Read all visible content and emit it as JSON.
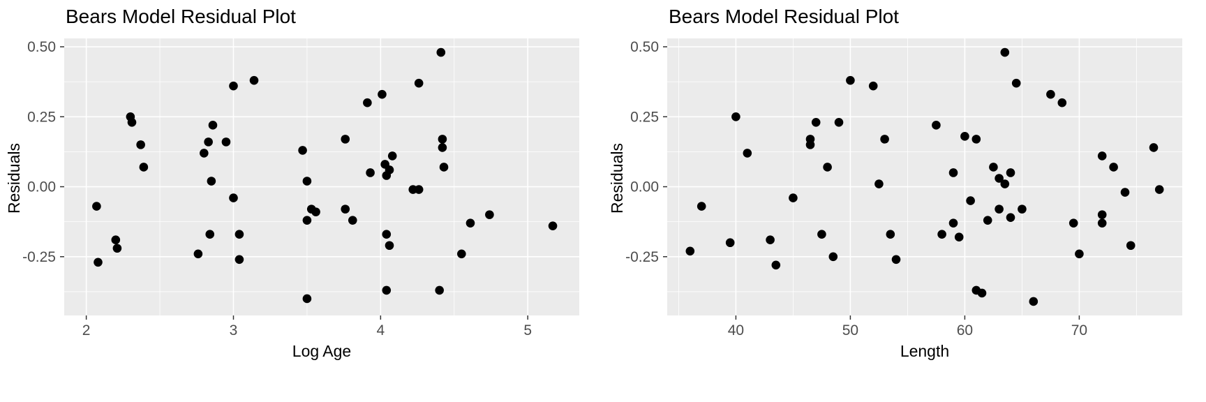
{
  "style": {
    "panel_bg": "#EBEBEB",
    "grid_color": "#FFFFFF",
    "point_color": "#000000",
    "tick_label_color": "#4D4D4D",
    "tick_mark_color": "#333333",
    "title_color": "#000000"
  },
  "chart_data": [
    {
      "type": "scatter",
      "title": "Bears Model Residual Plot",
      "xlabel": "Log Age",
      "ylabel": "Residuals",
      "xlim": [
        1.85,
        5.35
      ],
      "ylim": [
        -0.46,
        0.53
      ],
      "xtick_values": [
        2,
        3,
        4,
        5
      ],
      "xtick_labels": [
        "2",
        "3",
        "4",
        "5"
      ],
      "xminor_values": [
        2.5,
        3.5,
        4.5
      ],
      "ytick_values": [
        -0.25,
        0.0,
        0.25,
        0.5
      ],
      "ytick_labels": [
        "-0.25",
        "0.00",
        "0.25",
        "0.50"
      ],
      "yminor_values": [
        -0.375,
        -0.125,
        0.125,
        0.375
      ],
      "grid": true,
      "legend": false,
      "points": [
        [
          2.07,
          -0.07
        ],
        [
          2.08,
          -0.27
        ],
        [
          2.2,
          -0.19
        ],
        [
          2.21,
          -0.22
        ],
        [
          2.3,
          0.25
        ],
        [
          2.31,
          0.23
        ],
        [
          2.37,
          0.15
        ],
        [
          2.39,
          0.07
        ],
        [
          2.76,
          -0.24
        ],
        [
          2.8,
          0.12
        ],
        [
          2.83,
          0.16
        ],
        [
          2.86,
          0.22
        ],
        [
          2.85,
          0.02
        ],
        [
          2.84,
          -0.17
        ],
        [
          2.95,
          0.16
        ],
        [
          3.0,
          0.36
        ],
        [
          3.0,
          -0.04
        ],
        [
          3.04,
          -0.17
        ],
        [
          3.04,
          -0.26
        ],
        [
          3.14,
          0.38
        ],
        [
          3.47,
          0.13
        ],
        [
          3.5,
          0.02
        ],
        [
          3.5,
          -0.12
        ],
        [
          3.53,
          -0.08
        ],
        [
          3.56,
          -0.09
        ],
        [
          3.5,
          -0.4
        ],
        [
          3.76,
          0.17
        ],
        [
          3.76,
          -0.08
        ],
        [
          3.81,
          -0.12
        ],
        [
          3.91,
          0.3
        ],
        [
          3.93,
          0.05
        ],
        [
          4.01,
          0.33
        ],
        [
          4.03,
          0.08
        ],
        [
          4.04,
          0.04
        ],
        [
          4.06,
          0.06
        ],
        [
          4.08,
          0.11
        ],
        [
          4.04,
          -0.17
        ],
        [
          4.06,
          -0.21
        ],
        [
          4.04,
          -0.37
        ],
        [
          4.22,
          -0.01
        ],
        [
          4.26,
          -0.01
        ],
        [
          4.26,
          0.37
        ],
        [
          4.41,
          0.48
        ],
        [
          4.42,
          0.17
        ],
        [
          4.42,
          0.14
        ],
        [
          4.43,
          0.07
        ],
        [
          4.4,
          -0.37
        ],
        [
          4.55,
          -0.24
        ],
        [
          4.61,
          -0.13
        ],
        [
          4.74,
          -0.1
        ],
        [
          5.17,
          -0.14
        ]
      ]
    },
    {
      "type": "scatter",
      "title": "Bears Model Residual Plot",
      "xlabel": "Length",
      "ylabel": "Residuals",
      "xlim": [
        34,
        79
      ],
      "ylim": [
        -0.46,
        0.53
      ],
      "xtick_values": [
        40,
        50,
        60,
        70
      ],
      "xtick_labels": [
        "40",
        "50",
        "60",
        "70"
      ],
      "xminor_values": [
        35,
        45,
        55,
        65,
        75
      ],
      "ytick_values": [
        -0.25,
        0.0,
        0.25,
        0.5
      ],
      "ytick_labels": [
        "-0.25",
        "0.00",
        "0.25",
        "0.50"
      ],
      "yminor_values": [
        -0.375,
        -0.125,
        0.125,
        0.375
      ],
      "grid": true,
      "legend": false,
      "points": [
        [
          36,
          -0.23
        ],
        [
          37,
          -0.07
        ],
        [
          39.5,
          -0.2
        ],
        [
          40,
          0.25
        ],
        [
          41,
          0.12
        ],
        [
          43,
          -0.19
        ],
        [
          43.5,
          -0.28
        ],
        [
          45,
          -0.04
        ],
        [
          46.5,
          0.15
        ],
        [
          46.5,
          0.17
        ],
        [
          47,
          0.23
        ],
        [
          47.5,
          -0.17
        ],
        [
          48,
          0.07
        ],
        [
          48.5,
          -0.25
        ],
        [
          49,
          0.23
        ],
        [
          50,
          0.38
        ],
        [
          52,
          0.36
        ],
        [
          52.5,
          0.01
        ],
        [
          53,
          0.17
        ],
        [
          53.5,
          -0.17
        ],
        [
          54,
          -0.26
        ],
        [
          57.5,
          0.22
        ],
        [
          58,
          -0.17
        ],
        [
          59,
          0.05
        ],
        [
          59,
          -0.13
        ],
        [
          59.5,
          -0.18
        ],
        [
          60,
          0.18
        ],
        [
          60.5,
          -0.05
        ],
        [
          61,
          0.17
        ],
        [
          61,
          -0.37
        ],
        [
          61.5,
          -0.38
        ],
        [
          62,
          -0.12
        ],
        [
          62.5,
          0.07
        ],
        [
          63,
          0.03
        ],
        [
          63,
          -0.08
        ],
        [
          63.5,
          0.48
        ],
        [
          63.5,
          0.01
        ],
        [
          64,
          0.05
        ],
        [
          64,
          -0.11
        ],
        [
          64.5,
          0.37
        ],
        [
          65,
          -0.08
        ],
        [
          66,
          -0.41
        ],
        [
          67.5,
          0.33
        ],
        [
          68.5,
          0.3
        ],
        [
          69.5,
          -0.13
        ],
        [
          70,
          -0.24
        ],
        [
          72,
          0.11
        ],
        [
          72,
          -0.1
        ],
        [
          72,
          -0.13
        ],
        [
          73,
          0.07
        ],
        [
          74,
          -0.02
        ],
        [
          74.5,
          -0.21
        ],
        [
          76.5,
          0.14
        ],
        [
          77,
          -0.01
        ]
      ]
    }
  ]
}
